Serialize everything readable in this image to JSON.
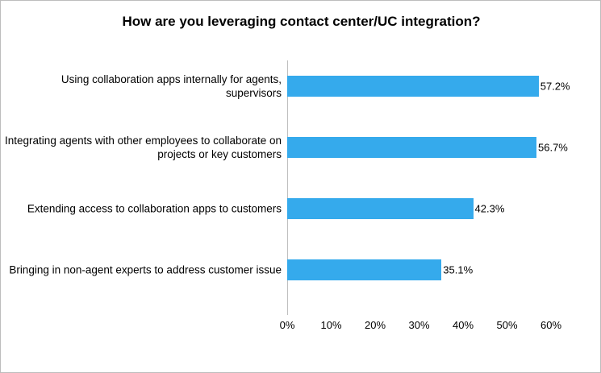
{
  "chart_data": {
    "type": "bar",
    "orientation": "horizontal",
    "title": "How are you leveraging contact center/UC integration?",
    "categories": [
      "Using collaboration apps internally for agents, supervisors",
      "Integrating agents with other employees to collaborate on projects or key customers",
      "Extending access to collaboration apps to customers",
      "Bringing in non-agent experts to address customer issue"
    ],
    "values": [
      57.2,
      56.7,
      42.3,
      35.1
    ],
    "value_labels": [
      "57.2%",
      "56.7%",
      "42.3%",
      "35.1%"
    ],
    "color": "#35aaec",
    "xlim": [
      0,
      60
    ],
    "xticks": [
      {
        "value": 0,
        "label": "0%"
      },
      {
        "value": 10,
        "label": "10%"
      },
      {
        "value": 20,
        "label": "20%"
      },
      {
        "value": 30,
        "label": "30%"
      },
      {
        "value": 40,
        "label": "40%"
      },
      {
        "value": 50,
        "label": "50%"
      },
      {
        "value": 60,
        "label": "60%"
      }
    ],
    "grid": false
  }
}
